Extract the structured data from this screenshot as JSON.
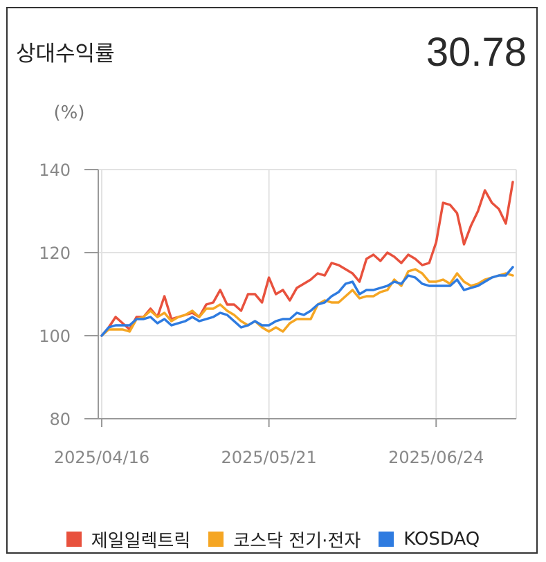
{
  "header": {
    "title": "상대수익률",
    "value": "30.78"
  },
  "chart_data": {
    "type": "line",
    "ylabel": "(%)",
    "ylim": [
      80,
      140
    ],
    "yticks": [
      80,
      100,
      120,
      140
    ],
    "grid": true,
    "legend_position": "bottom",
    "x_tick_labels": [
      {
        "label": "2025/04/16",
        "index": 0
      },
      {
        "label": "2025/05/21",
        "index": 24
      },
      {
        "label": "2025/06/24",
        "index": 48
      }
    ],
    "series": [
      {
        "name": "제일일렉트릭",
        "color": "#e8513d",
        "values": [
          100,
          102,
          104.5,
          103,
          101.5,
          104.5,
          104.5,
          106.5,
          104.5,
          109.5,
          104,
          104.5,
          105,
          105.5,
          104.5,
          107.5,
          108,
          111,
          107.5,
          107.5,
          106,
          110,
          110,
          108,
          114,
          110,
          111,
          108.5,
          111.5,
          112.5,
          113.5,
          115,
          114.5,
          117.5,
          117,
          116,
          115,
          113,
          118.5,
          119.5,
          118,
          120,
          119,
          117.5,
          119.5,
          118.5,
          117,
          117.5,
          122.5,
          132,
          131.5,
          129.5,
          122,
          126.5,
          130,
          135,
          132,
          130.5,
          127,
          137
        ]
      },
      {
        "name": "코스닥 전기·전자",
        "color": "#f5a623",
        "values": [
          100,
          101.5,
          101.5,
          101.5,
          101,
          104,
          104.5,
          106,
          104.5,
          105.5,
          103.5,
          104.5,
          105,
          106,
          104.5,
          106.5,
          106.5,
          107.5,
          106,
          105,
          103.5,
          102.5,
          103.5,
          102,
          101,
          102,
          101,
          103,
          104,
          104,
          104,
          107.5,
          108.5,
          108,
          108,
          109.5,
          111,
          109,
          109.5,
          109.5,
          110.5,
          111,
          113.5,
          112,
          115.5,
          116,
          115,
          113,
          113,
          113.5,
          112.5,
          115,
          113,
          112,
          112.5,
          113.5,
          114,
          114.5,
          115,
          114.5
        ]
      },
      {
        "name": "KOSDAQ",
        "color": "#2e7be0",
        "values": [
          100,
          102,
          102.5,
          102.5,
          102.5,
          104,
          104,
          104.5,
          103,
          104,
          102.5,
          103,
          103.5,
          104.5,
          103.5,
          104,
          104.5,
          105.5,
          105,
          103.5,
          102,
          102.5,
          103.5,
          102.5,
          102.5,
          103.5,
          104,
          104,
          105.5,
          105,
          106,
          107.5,
          108,
          109.5,
          110.5,
          112.5,
          113,
          110,
          111,
          111,
          111.5,
          112,
          113,
          112.5,
          114.5,
          114,
          112.5,
          112,
          112,
          112,
          112,
          113.5,
          111,
          111.5,
          112,
          113,
          114,
          114.5,
          114.5,
          116.5
        ]
      }
    ]
  }
}
